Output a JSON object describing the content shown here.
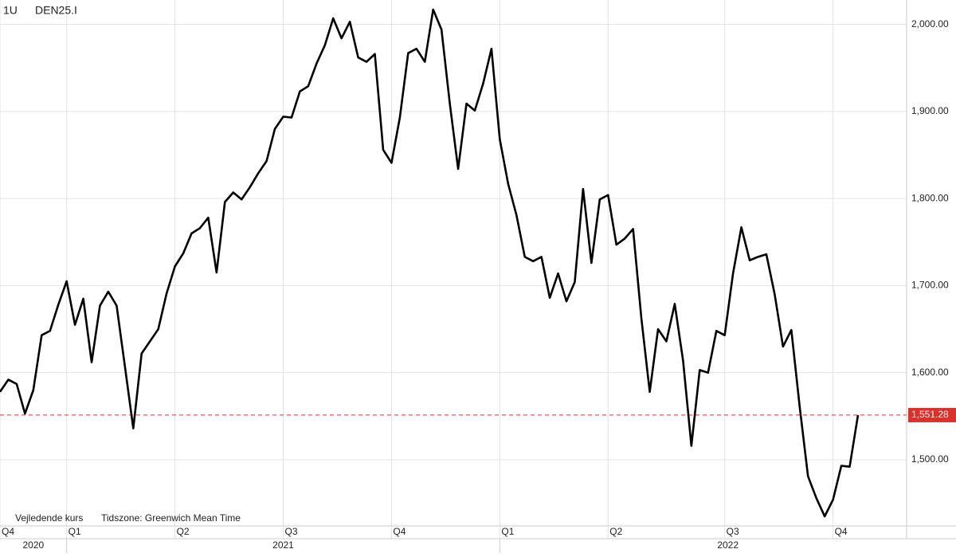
{
  "chart_data": {
    "type": "line",
    "instrument_period": "1U",
    "instrument": "DEN25.I",
    "notes": [
      "Vejledende kurs",
      "Tidszone: Greenwich Mean Time"
    ],
    "categories": [
      "Q4",
      null,
      null,
      null,
      null,
      null,
      null,
      null,
      "Q1",
      null,
      null,
      null,
      null,
      null,
      null,
      null,
      null,
      null,
      null,
      null,
      null,
      "Q2",
      null,
      null,
      null,
      null,
      null,
      null,
      null,
      null,
      null,
      null,
      null,
      null,
      "Q3",
      null,
      null,
      null,
      null,
      null,
      null,
      null,
      null,
      null,
      null,
      null,
      null,
      "Q4",
      null,
      null,
      null,
      null,
      null,
      null,
      null,
      null,
      null,
      null,
      null,
      null,
      "Q1",
      null,
      null,
      null,
      null,
      null,
      null,
      null,
      null,
      null,
      null,
      null,
      null,
      "Q2",
      null,
      null,
      null,
      null,
      null,
      null,
      null,
      null,
      null,
      null,
      null,
      null,
      null,
      "Q3",
      null,
      null,
      null,
      null,
      null,
      null,
      null,
      null,
      null,
      null,
      null,
      null,
      "Q4",
      null,
      null,
      null
    ],
    "year_categories": [
      "2020",
      null,
      null,
      null,
      null,
      null,
      null,
      null,
      "2021",
      null,
      null,
      null,
      null,
      null,
      null,
      null,
      null,
      null,
      null,
      null,
      null,
      null,
      null,
      null,
      null,
      null,
      null,
      null,
      null,
      null,
      null,
      null,
      null,
      null,
      null,
      null,
      null,
      null,
      null,
      null,
      null,
      null,
      null,
      null,
      null,
      null,
      null,
      null,
      null,
      null,
      null,
      null,
      null,
      null,
      null,
      null,
      null,
      null,
      null,
      null,
      "2022",
      null,
      null,
      null,
      null,
      null,
      null,
      null,
      null,
      null,
      null,
      null,
      null,
      null,
      null,
      null,
      null,
      null,
      null,
      null,
      null,
      null,
      null,
      null,
      null,
      null,
      null,
      null,
      null,
      null,
      null,
      null,
      null,
      null,
      null,
      null,
      null,
      null,
      null,
      null,
      null,
      null,
      null,
      null
    ],
    "series": [
      {
        "name": "DEN25.I",
        "color": "#000000",
        "values": [
          1578,
          1592,
          1587,
          1553,
          1580,
          1643,
          1648,
          1678,
          1705,
          1655,
          1685,
          1612,
          1677,
          1693,
          1677,
          1607,
          1536,
          1622,
          1636,
          1650,
          1691,
          1722,
          1737,
          1760,
          1766,
          1778,
          1715,
          1796,
          1807,
          1799,
          1813,
          1829,
          1843,
          1880,
          1894,
          1893,
          1923,
          1929,
          1955,
          1976,
          2007,
          1984,
          2003,
          1962,
          1957,
          1966,
          1856,
          1841,
          1893,
          1967,
          1972,
          1957,
          2017,
          1994,
          1909,
          1834,
          1909,
          1901,
          1932,
          1972,
          1868,
          1817,
          1781,
          1733,
          1728,
          1733,
          1686,
          1714,
          1682,
          1704,
          1811,
          1726,
          1799,
          1804,
          1747,
          1754,
          1765,
          1662,
          1578,
          1650,
          1636,
          1679,
          1614,
          1516,
          1603,
          1600,
          1648,
          1643,
          1714,
          1767,
          1729,
          1733,
          1736,
          1690,
          1630,
          1649,
          1561,
          1481,
          1456,
          1435,
          1454,
          1493,
          1492,
          1551.28
        ]
      }
    ],
    "last_price": {
      "value": 1551.28,
      "label": "1,551.28",
      "color": "#d9322c"
    },
    "ylim": [
      1424,
      2028
    ],
    "yticks": [
      {
        "value": 1500,
        "label": "1,500.00"
      },
      {
        "value": 1600,
        "label": "1,600.00"
      },
      {
        "value": 1700,
        "label": "1,700.00"
      },
      {
        "value": 1800,
        "label": "1,800.00"
      },
      {
        "value": 1900,
        "label": "1,900.00"
      },
      {
        "value": 2000,
        "label": "2,000.00"
      }
    ],
    "grid": true
  }
}
